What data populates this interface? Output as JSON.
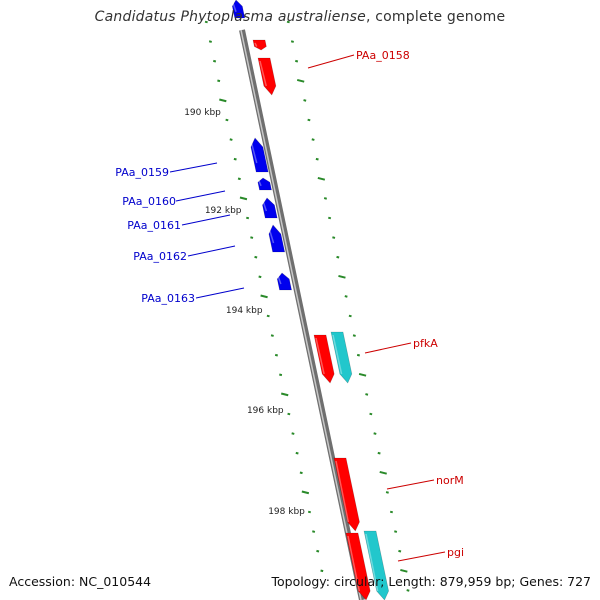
{
  "header": {
    "species": "Candidatus Phytoplasma australiense",
    "suffix": ", complete genome"
  },
  "footer": {
    "accession": "Accession: NC_010544",
    "summary": "Topology: circular; Length: 879,959 bp; Genes: 727"
  },
  "colors": {
    "backbone": "#8a8a8a",
    "forward_gene": "#ff0000",
    "reverse_gene": "#0000ee",
    "rna_feature": "#22c7cc",
    "tick": "#2a8a2a",
    "label_forward": "#cc0000",
    "label_reverse": "#0000cc"
  },
  "scale_labels": [
    "190 kbp",
    "192 kbp",
    "194 kbp",
    "196 kbp",
    "198 kbp"
  ],
  "gene_labels": {
    "PAa_0158": "PAa_0158",
    "PAa_0159": "PAa_0159",
    "PAa_0160": "PAa_0160",
    "PAa_0161": "PAa_0161",
    "PAa_0162": "PAa_0162",
    "PAa_0163": "PAa_0163",
    "pfkA": "pfkA",
    "norM": "norM",
    "pgi": "pgi"
  }
}
